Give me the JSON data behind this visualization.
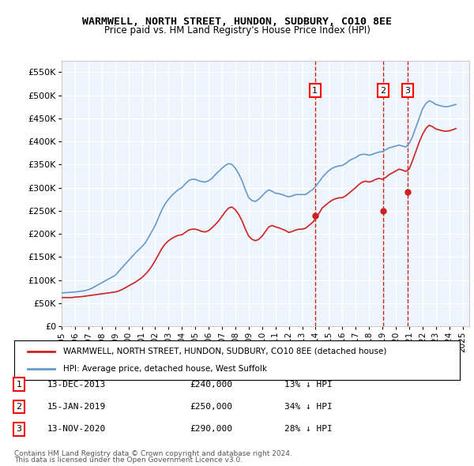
{
  "title": "WARMWELL, NORTH STREET, HUNDON, SUDBURY, CO10 8EE",
  "subtitle": "Price paid vs. HM Land Registry's House Price Index (HPI)",
  "ylabel": "",
  "ylim": [
    0,
    575000
  ],
  "yticks": [
    0,
    50000,
    100000,
    150000,
    200000,
    250000,
    300000,
    350000,
    400000,
    450000,
    500000,
    550000
  ],
  "xlim_start": 1995.0,
  "xlim_end": 2025.5,
  "background_color": "#ffffff",
  "plot_bg_color": "#eef4fb",
  "grid_color": "#ffffff",
  "hpi_color": "#6699cc",
  "price_color": "#cc2222",
  "sale_marker_color": "#cc2222",
  "dashed_line_color": "#cc2222",
  "legend_label_price": "WARMWELL, NORTH STREET, HUNDON, SUDBURY, CO10 8EE (detached house)",
  "legend_label_hpi": "HPI: Average price, detached house, West Suffolk",
  "sales": [
    {
      "num": 1,
      "date_label": "13-DEC-2013",
      "x": 2013.96,
      "price": 240000,
      "pct": "13%",
      "direction": "↓"
    },
    {
      "num": 2,
      "date_label": "15-JAN-2019",
      "x": 2019.05,
      "price": 250000,
      "pct": "34%",
      "direction": "↓"
    },
    {
      "num": 3,
      "date_label": "13-NOV-2020",
      "x": 2020.87,
      "price": 290000,
      "pct": "28%",
      "direction": "↓"
    }
  ],
  "footer1": "Contains HM Land Registry data © Crown copyright and database right 2024.",
  "footer2": "This data is licensed under the Open Government Licence v3.0.",
  "hpi_data": {
    "x": [
      1995.0,
      1995.25,
      1995.5,
      1995.75,
      1996.0,
      1996.25,
      1996.5,
      1996.75,
      1997.0,
      1997.25,
      1997.5,
      1997.75,
      1998.0,
      1998.25,
      1998.5,
      1998.75,
      1999.0,
      1999.25,
      1999.5,
      1999.75,
      2000.0,
      2000.25,
      2000.5,
      2000.75,
      2001.0,
      2001.25,
      2001.5,
      2001.75,
      2002.0,
      2002.25,
      2002.5,
      2002.75,
      2003.0,
      2003.25,
      2003.5,
      2003.75,
      2004.0,
      2004.25,
      2004.5,
      2004.75,
      2005.0,
      2005.25,
      2005.5,
      2005.75,
      2006.0,
      2006.25,
      2006.5,
      2006.75,
      2007.0,
      2007.25,
      2007.5,
      2007.75,
      2008.0,
      2008.25,
      2008.5,
      2008.75,
      2009.0,
      2009.25,
      2009.5,
      2009.75,
      2010.0,
      2010.25,
      2010.5,
      2010.75,
      2011.0,
      2011.25,
      2011.5,
      2011.75,
      2012.0,
      2012.25,
      2012.5,
      2012.75,
      2013.0,
      2013.25,
      2013.5,
      2013.75,
      2014.0,
      2014.25,
      2014.5,
      2014.75,
      2015.0,
      2015.25,
      2015.5,
      2015.75,
      2016.0,
      2016.25,
      2016.5,
      2016.75,
      2017.0,
      2017.25,
      2017.5,
      2017.75,
      2018.0,
      2018.25,
      2018.5,
      2018.75,
      2019.0,
      2019.25,
      2019.5,
      2019.75,
      2020.0,
      2020.25,
      2020.5,
      2020.75,
      2021.0,
      2021.25,
      2021.5,
      2021.75,
      2022.0,
      2022.25,
      2022.5,
      2022.75,
      2023.0,
      2023.25,
      2023.5,
      2023.75,
      2024.0,
      2024.25,
      2024.5
    ],
    "y": [
      72000,
      72500,
      73000,
      73500,
      74000,
      75000,
      76000,
      77000,
      79000,
      82000,
      86000,
      90000,
      94000,
      98000,
      102000,
      106000,
      110000,
      118000,
      126000,
      134000,
      142000,
      150000,
      158000,
      165000,
      172000,
      180000,
      192000,
      205000,
      218000,
      235000,
      252000,
      265000,
      275000,
      283000,
      290000,
      296000,
      300000,
      308000,
      315000,
      318000,
      318000,
      315000,
      313000,
      312000,
      315000,
      320000,
      328000,
      335000,
      342000,
      348000,
      352000,
      350000,
      342000,
      330000,
      315000,
      295000,
      278000,
      272000,
      270000,
      275000,
      282000,
      290000,
      295000,
      292000,
      288000,
      287000,
      285000,
      282000,
      280000,
      282000,
      285000,
      285000,
      285000,
      285000,
      290000,
      295000,
      302000,
      312000,
      322000,
      330000,
      337000,
      342000,
      345000,
      347000,
      348000,
      352000,
      358000,
      362000,
      365000,
      370000,
      372000,
      372000,
      370000,
      372000,
      375000,
      377000,
      378000,
      382000,
      386000,
      388000,
      390000,
      392000,
      390000,
      388000,
      395000,
      410000,
      430000,
      450000,
      470000,
      482000,
      488000,
      485000,
      480000,
      478000,
      476000,
      475000,
      476000,
      478000,
      480000
    ]
  },
  "price_data": {
    "x": [
      1995.0,
      1995.25,
      1995.5,
      1995.75,
      1996.0,
      1996.25,
      1996.5,
      1996.75,
      1997.0,
      1997.25,
      1997.5,
      1997.75,
      1998.0,
      1998.25,
      1998.5,
      1998.75,
      1999.0,
      1999.25,
      1999.5,
      1999.75,
      2000.0,
      2000.25,
      2000.5,
      2000.75,
      2001.0,
      2001.25,
      2001.5,
      2001.75,
      2002.0,
      2002.25,
      2002.5,
      2002.75,
      2003.0,
      2003.25,
      2003.5,
      2003.75,
      2004.0,
      2004.25,
      2004.5,
      2004.75,
      2005.0,
      2005.25,
      2005.5,
      2005.75,
      2006.0,
      2006.25,
      2006.5,
      2006.75,
      2007.0,
      2007.25,
      2007.5,
      2007.75,
      2008.0,
      2008.25,
      2008.5,
      2008.75,
      2009.0,
      2009.25,
      2009.5,
      2009.75,
      2010.0,
      2010.25,
      2010.5,
      2010.75,
      2011.0,
      2011.25,
      2011.5,
      2011.75,
      2012.0,
      2012.25,
      2012.5,
      2012.75,
      2013.0,
      2013.25,
      2013.5,
      2013.75,
      2014.0,
      2014.25,
      2014.5,
      2014.75,
      2015.0,
      2015.25,
      2015.5,
      2015.75,
      2016.0,
      2016.25,
      2016.5,
      2016.75,
      2017.0,
      2017.25,
      2017.5,
      2017.75,
      2018.0,
      2018.25,
      2018.5,
      2018.75,
      2019.0,
      2019.25,
      2019.5,
      2019.75,
      2020.0,
      2020.25,
      2020.5,
      2020.75,
      2021.0,
      2021.25,
      2021.5,
      2021.75,
      2022.0,
      2022.25,
      2022.5,
      2022.75,
      2023.0,
      2023.25,
      2023.5,
      2023.75,
      2024.0,
      2024.25,
      2024.5
    ],
    "y": [
      62000,
      62000,
      62000,
      62000,
      63000,
      63500,
      64000,
      65000,
      66000,
      67000,
      68000,
      69000,
      70000,
      71000,
      72000,
      73000,
      74000,
      76000,
      79000,
      83000,
      87000,
      91000,
      95000,
      100000,
      105000,
      112000,
      120000,
      130000,
      142000,
      155000,
      168000,
      178000,
      185000,
      190000,
      194000,
      197000,
      198000,
      203000,
      208000,
      210000,
      210000,
      208000,
      205000,
      204000,
      207000,
      213000,
      220000,
      228000,
      238000,
      248000,
      256000,
      258000,
      252000,
      242000,
      228000,
      210000,
      195000,
      188000,
      185000,
      188000,
      195000,
      205000,
      215000,
      218000,
      215000,
      213000,
      210000,
      207000,
      203000,
      205000,
      208000,
      210000,
      210000,
      212000,
      218000,
      224000,
      232000,
      244000,
      256000,
      262000,
      268000,
      273000,
      276000,
      278000,
      278000,
      282000,
      288000,
      294000,
      300000,
      307000,
      312000,
      314000,
      312000,
      314000,
      318000,
      320000,
      318000,
      322000,
      328000,
      332000,
      336000,
      340000,
      338000,
      335000,
      340000,
      358000,
      378000,
      398000,
      415000,
      428000,
      435000,
      432000,
      427000,
      425000,
      423000,
      422000,
      423000,
      425000,
      428000
    ]
  }
}
